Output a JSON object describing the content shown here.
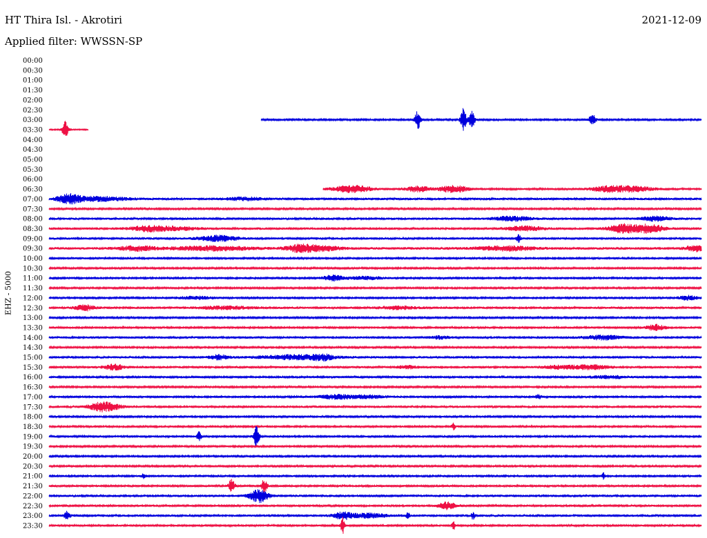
{
  "header": {
    "station": "HT Thira Isl. - Akrotiri",
    "filter": "Applied filter: WWSSN-SP",
    "date": "2021-12-09"
  },
  "chart_data": {
    "type": "line",
    "title": "HT Thira Isl. - Akrotiri",
    "subtitle": "Applied filter: WWSSN-SP",
    "ylabel": "EHZ - 5000",
    "xlabel": "",
    "tick_labels": [
      "00:00",
      "00:30",
      "01:00",
      "01:30",
      "02:00",
      "02:30",
      "03:00",
      "03:30",
      "04:00",
      "04:30",
      "05:00",
      "05:30",
      "06:00",
      "06:30",
      "07:00",
      "07:30",
      "08:00",
      "08:30",
      "09:00",
      "09:30",
      "10:00",
      "10:30",
      "11:00",
      "11:30",
      "12:00",
      "12:30",
      "13:00",
      "13:30",
      "14:00",
      "14:30",
      "15:00",
      "15:30",
      "16:00",
      "16:30",
      "17:00",
      "17:30",
      "18:00",
      "18:30",
      "19:00",
      "19:30",
      "20:00",
      "20:30",
      "21:00",
      "21:30",
      "22:00",
      "22:30",
      "23:00",
      "23:30"
    ],
    "colors": {
      "blue": "#0000dd",
      "red": "#ee1144"
    },
    "traces": [
      {
        "row": 6,
        "color": "blue",
        "start": 0.325,
        "end": 1.0,
        "noise": 1.2,
        "events": [
          [
            0.565,
            14,
            0.003
          ],
          [
            0.635,
            16,
            0.003
          ],
          [
            0.648,
            12,
            0.003
          ],
          [
            0.833,
            7,
            0.004
          ]
        ]
      },
      {
        "row": 7,
        "color": "red",
        "start": 0.0,
        "end": 0.06,
        "noise": 0.8,
        "events": [
          [
            0.025,
            15,
            0.003
          ]
        ]
      },
      {
        "row": 13,
        "color": "red",
        "start": 0.42,
        "end": 1.0,
        "noise": 1.4,
        "events": [
          [
            0.465,
            5,
            0.02
          ],
          [
            0.565,
            4,
            0.012
          ],
          [
            0.62,
            5,
            0.015
          ],
          [
            0.86,
            4,
            0.02
          ],
          [
            0.9,
            3,
            0.02
          ]
        ]
      },
      {
        "row": 14,
        "color": "blue",
        "start": 0.0,
        "end": 1.0,
        "noise": 1.6,
        "events": [
          [
            0.03,
            6,
            0.012
          ],
          [
            0.075,
            3,
            0.03
          ],
          [
            0.3,
            2,
            0.02
          ]
        ]
      },
      {
        "row": 15,
        "color": "red",
        "start": 0.0,
        "end": 1.0,
        "noise": 1.2,
        "events": []
      },
      {
        "row": 16,
        "color": "blue",
        "start": 0.0,
        "end": 1.0,
        "noise": 1.6,
        "events": [
          [
            0.71,
            3,
            0.02
          ],
          [
            0.93,
            3,
            0.015
          ]
        ]
      },
      {
        "row": 17,
        "color": "red",
        "start": 0.0,
        "end": 1.0,
        "noise": 1.6,
        "events": [
          [
            0.155,
            4,
            0.02
          ],
          [
            0.2,
            2,
            0.02
          ],
          [
            0.73,
            3,
            0.02
          ],
          [
            0.88,
            6,
            0.015
          ],
          [
            0.92,
            6,
            0.015
          ]
        ]
      },
      {
        "row": 18,
        "color": "blue",
        "start": 0.0,
        "end": 1.0,
        "noise": 1.6,
        "events": [
          [
            0.26,
            4,
            0.02
          ],
          [
            0.72,
            6,
            0.002
          ]
        ]
      },
      {
        "row": 19,
        "color": "red",
        "start": 0.0,
        "end": 1.0,
        "noise": 1.8,
        "events": [
          [
            0.135,
            3,
            0.02
          ],
          [
            0.25,
            3,
            0.04
          ],
          [
            0.385,
            5,
            0.015
          ],
          [
            0.42,
            3,
            0.02
          ],
          [
            0.7,
            3,
            0.03
          ],
          [
            0.99,
            4,
            0.01
          ]
        ]
      },
      {
        "row": 20,
        "color": "blue",
        "start": 0.0,
        "end": 1.0,
        "noise": 1.4,
        "events": []
      },
      {
        "row": 21,
        "color": "red",
        "start": 0.0,
        "end": 1.0,
        "noise": 1.2,
        "events": []
      },
      {
        "row": 22,
        "color": "blue",
        "start": 0.0,
        "end": 1.0,
        "noise": 1.4,
        "events": [
          [
            0.435,
            4,
            0.01
          ],
          [
            0.485,
            2,
            0.02
          ]
        ]
      },
      {
        "row": 23,
        "color": "red",
        "start": 0.0,
        "end": 1.0,
        "noise": 1.2,
        "events": []
      },
      {
        "row": 24,
        "color": "blue",
        "start": 0.0,
        "end": 1.0,
        "noise": 1.4,
        "events": [
          [
            0.225,
            2,
            0.02
          ],
          [
            0.98,
            3,
            0.01
          ]
        ]
      },
      {
        "row": 25,
        "color": "red",
        "start": 0.0,
        "end": 1.0,
        "noise": 1.6,
        "events": [
          [
            0.055,
            4,
            0.01
          ],
          [
            0.27,
            2,
            0.03
          ],
          [
            0.535,
            2,
            0.02
          ]
        ]
      },
      {
        "row": 26,
        "color": "blue",
        "start": 0.0,
        "end": 1.0,
        "noise": 1.2,
        "events": []
      },
      {
        "row": 27,
        "color": "red",
        "start": 0.0,
        "end": 1.0,
        "noise": 1.4,
        "events": [
          [
            0.93,
            4,
            0.01
          ]
        ]
      },
      {
        "row": 28,
        "color": "blue",
        "start": 0.0,
        "end": 1.0,
        "noise": 1.6,
        "events": [
          [
            0.6,
            2,
            0.01
          ],
          [
            0.85,
            3,
            0.02
          ]
        ]
      },
      {
        "row": 29,
        "color": "red",
        "start": 0.0,
        "end": 1.0,
        "noise": 1.2,
        "events": []
      },
      {
        "row": 30,
        "color": "blue",
        "start": 0.0,
        "end": 1.0,
        "noise": 1.6,
        "events": [
          [
            0.26,
            3,
            0.01
          ],
          [
            0.38,
            3,
            0.04
          ],
          [
            0.42,
            3,
            0.01
          ]
        ]
      },
      {
        "row": 31,
        "color": "red",
        "start": 0.0,
        "end": 1.0,
        "noise": 1.6,
        "events": [
          [
            0.1,
            4,
            0.01
          ],
          [
            0.55,
            2,
            0.01
          ],
          [
            0.78,
            2,
            0.02
          ],
          [
            0.83,
            3,
            0.02
          ]
        ]
      },
      {
        "row": 32,
        "color": "blue",
        "start": 0.0,
        "end": 1.0,
        "noise": 1.4,
        "events": [
          [
            0.86,
            2,
            0.02
          ]
        ]
      },
      {
        "row": 33,
        "color": "red",
        "start": 0.0,
        "end": 1.0,
        "noise": 1.2,
        "events": []
      },
      {
        "row": 34,
        "color": "blue",
        "start": 0.0,
        "end": 1.0,
        "noise": 1.4,
        "events": [
          [
            0.44,
            3,
            0.02
          ],
          [
            0.49,
            2,
            0.02
          ],
          [
            0.75,
            3,
            0.003
          ]
        ]
      },
      {
        "row": 35,
        "color": "red",
        "start": 0.0,
        "end": 1.0,
        "noise": 1.6,
        "events": [
          [
            0.085,
            7,
            0.015
          ]
        ]
      },
      {
        "row": 36,
        "color": "blue",
        "start": 0.0,
        "end": 1.0,
        "noise": 1.2,
        "events": []
      },
      {
        "row": 37,
        "color": "red",
        "start": 0.0,
        "end": 1.0,
        "noise": 1.4,
        "events": [
          [
            0.62,
            5,
            0.002
          ]
        ]
      },
      {
        "row": 38,
        "color": "blue",
        "start": 0.0,
        "end": 1.0,
        "noise": 1.4,
        "events": [
          [
            0.23,
            8,
            0.002
          ],
          [
            0.318,
            16,
            0.003
          ]
        ]
      },
      {
        "row": 39,
        "color": "red",
        "start": 0.0,
        "end": 1.0,
        "noise": 1.2,
        "events": []
      },
      {
        "row": 40,
        "color": "blue",
        "start": 0.0,
        "end": 1.0,
        "noise": 1.2,
        "events": []
      },
      {
        "row": 41,
        "color": "red",
        "start": 0.0,
        "end": 1.0,
        "noise": 1.2,
        "events": []
      },
      {
        "row": 42,
        "color": "blue",
        "start": 0.0,
        "end": 1.0,
        "noise": 1.4,
        "events": [
          [
            0.145,
            4,
            0.002
          ],
          [
            0.85,
            4,
            0.002
          ]
        ]
      },
      {
        "row": 43,
        "color": "red",
        "start": 0.0,
        "end": 1.0,
        "noise": 1.4,
        "events": [
          [
            0.28,
            10,
            0.003
          ],
          [
            0.33,
            10,
            0.003
          ]
        ]
      },
      {
        "row": 44,
        "color": "blue",
        "start": 0.0,
        "end": 1.0,
        "noise": 1.6,
        "events": [
          [
            0.322,
            9,
            0.01
          ]
        ]
      },
      {
        "row": 45,
        "color": "red",
        "start": 0.0,
        "end": 1.0,
        "noise": 1.4,
        "events": [
          [
            0.61,
            5,
            0.01
          ]
        ]
      },
      {
        "row": 46,
        "color": "blue",
        "start": 0.0,
        "end": 1.0,
        "noise": 1.6,
        "events": [
          [
            0.028,
            6,
            0.003
          ],
          [
            0.45,
            5,
            0.01
          ],
          [
            0.49,
            3,
            0.02
          ],
          [
            0.55,
            4,
            0.002
          ],
          [
            0.65,
            5,
            0.002
          ]
        ]
      },
      {
        "row": 47,
        "color": "red",
        "start": 0.0,
        "end": 1.0,
        "noise": 1.4,
        "events": [
          [
            0.45,
            12,
            0.002
          ],
          [
            0.62,
            6,
            0.002
          ]
        ]
      }
    ]
  }
}
